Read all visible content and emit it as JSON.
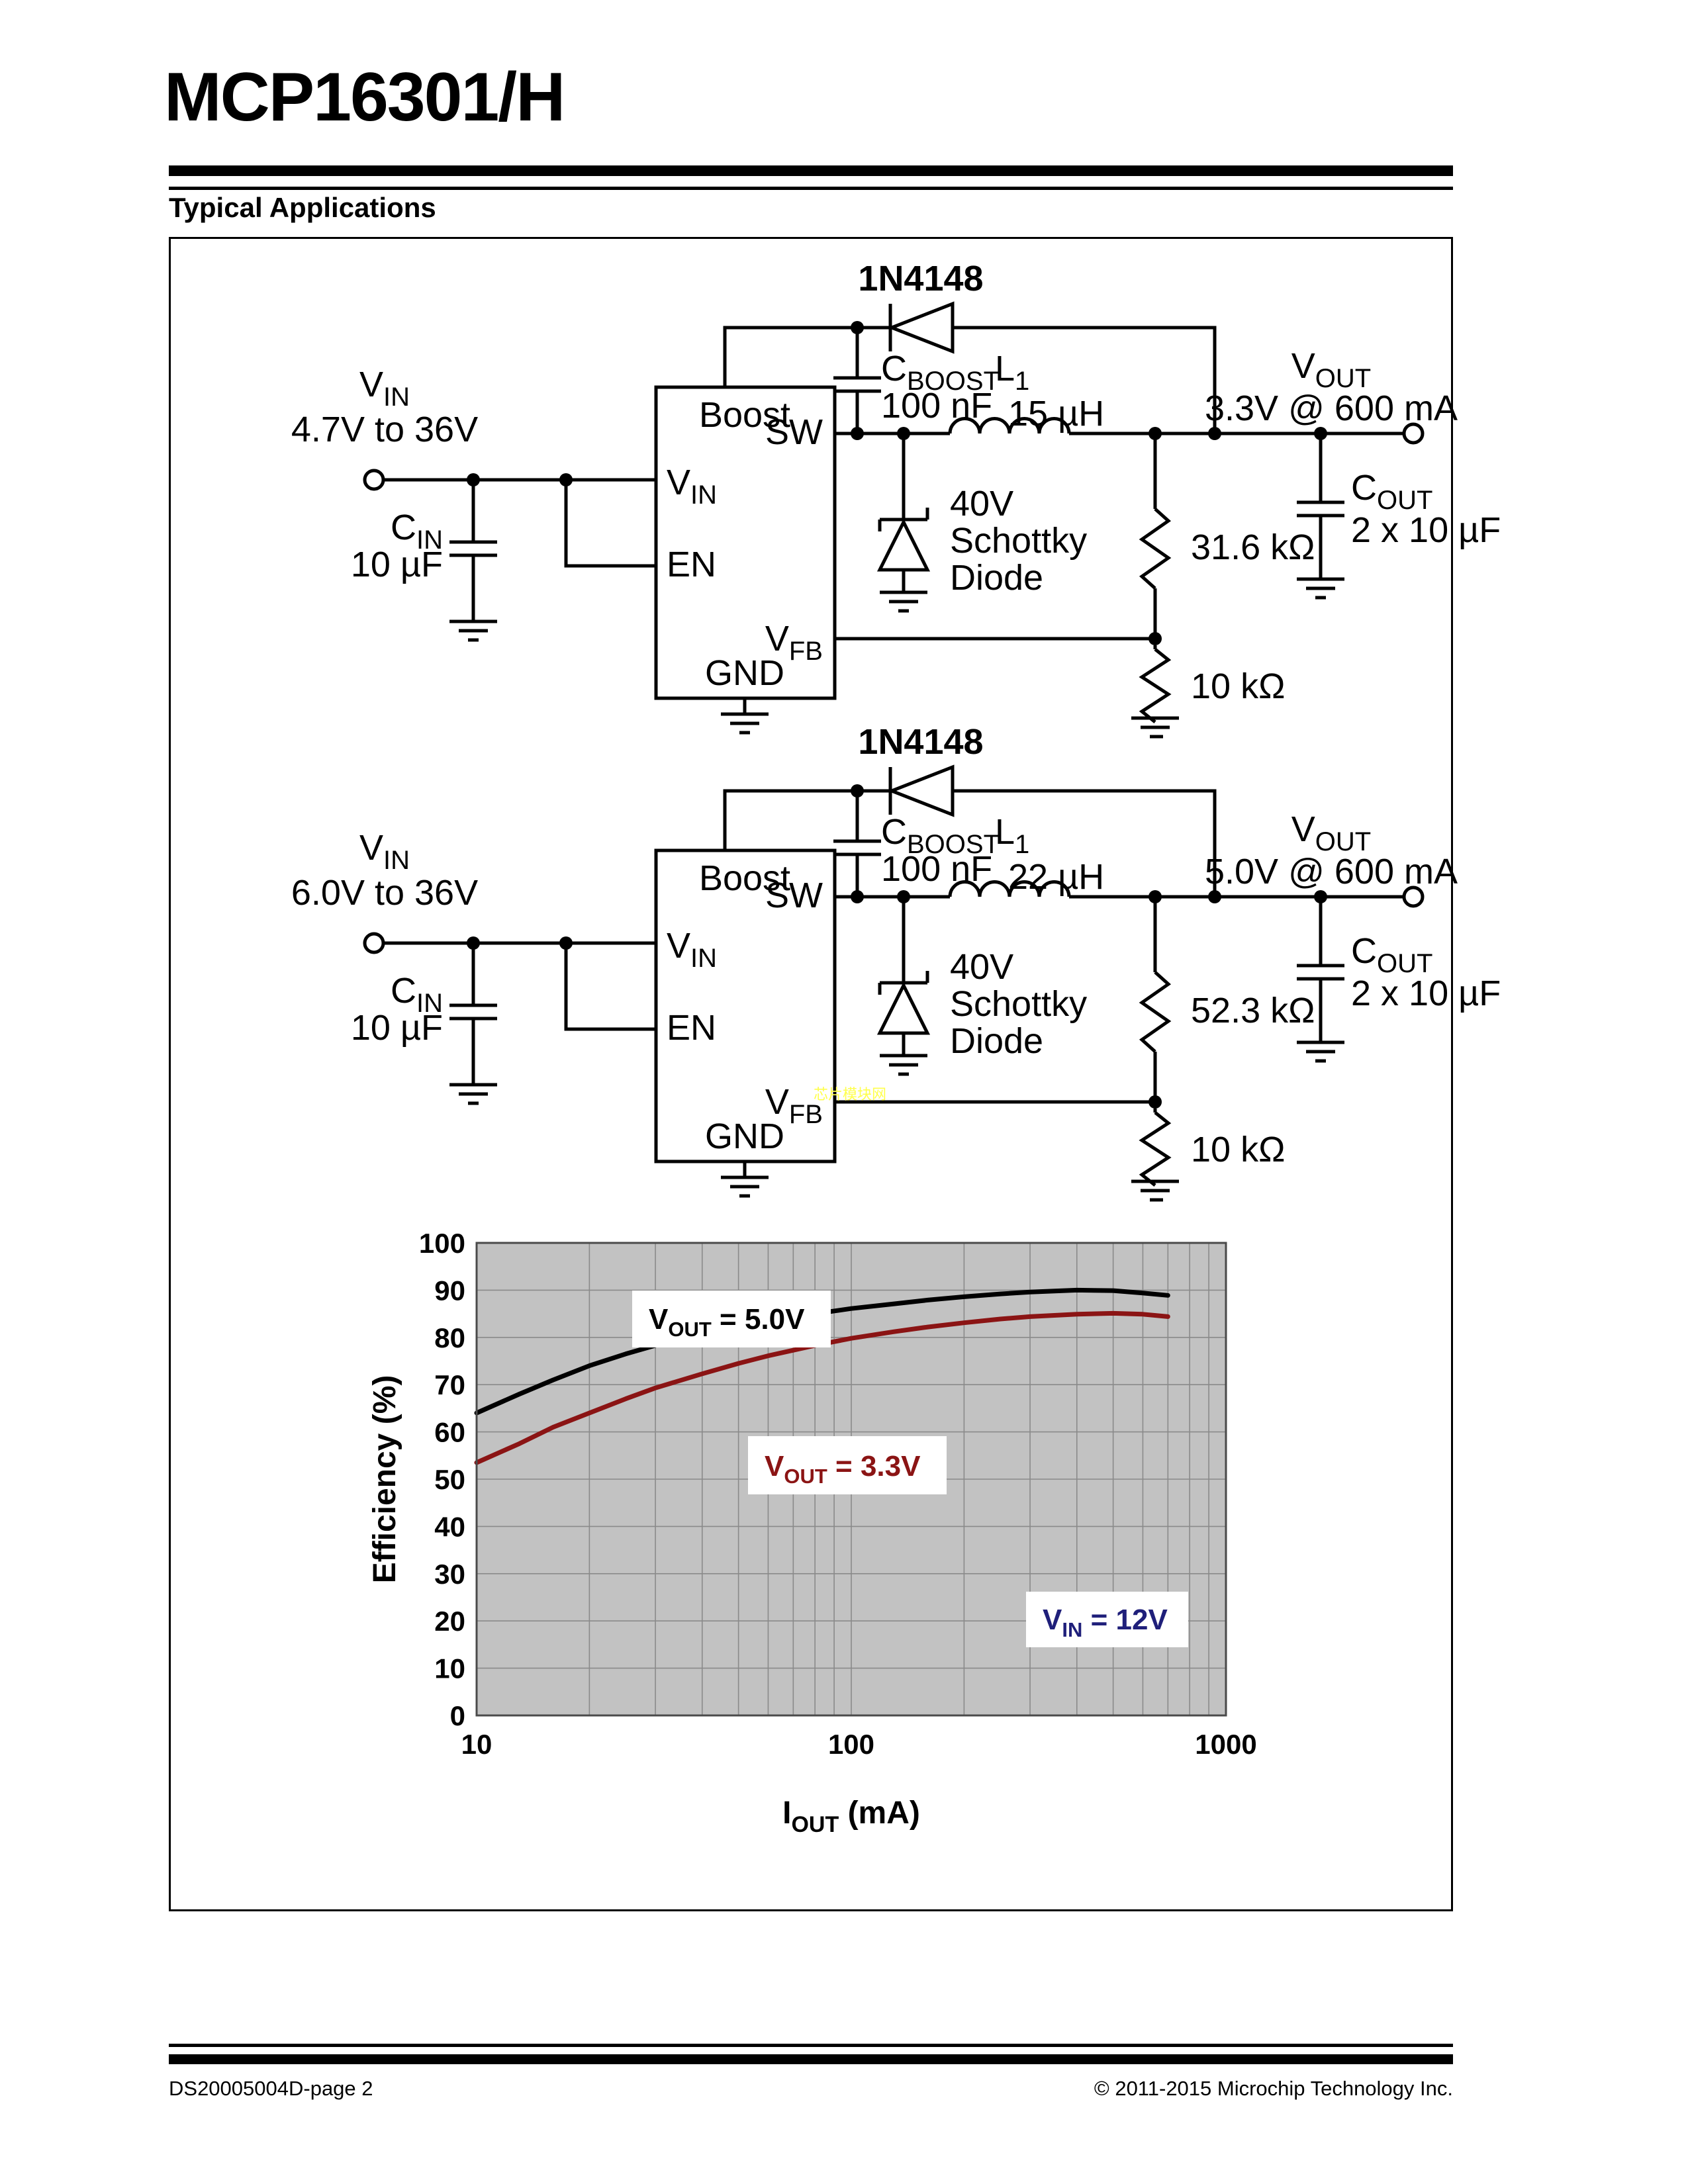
{
  "page": {
    "title": "MCP16301/H",
    "section_heading": "Typical Applications",
    "footer_left": "DS20005004D-page 2",
    "footer_right": "© 2011-2015 Microchip Technology Inc."
  },
  "circuit1": {
    "boost_diode_part": "1N4148",
    "vin_label": {
      "base": "V",
      "sub": "IN"
    },
    "vin_range": "4.7V to 36V",
    "cin_label": {
      "base": "C",
      "sub": "IN"
    },
    "cin_value": "10 µF",
    "ic": {
      "boost": "Boost",
      "sw": "SW",
      "vin": {
        "base": "V",
        "sub": "IN"
      },
      "en": "EN",
      "vfb": {
        "base": "V",
        "sub": "FB"
      },
      "gnd": "GND"
    },
    "cboost_label": {
      "base": "C",
      "sub": "BOOST"
    },
    "cboost_value": "100 nF",
    "inductor_label": {
      "base": "L",
      "sub": "1"
    },
    "inductor_value": "15 µH",
    "vout_label": {
      "base": "V",
      "sub": "OUT"
    },
    "vout_value": "3.3V @ 600 mA",
    "schottky_lines": [
      "40V",
      "Schottky",
      "Diode"
    ],
    "r_top": "31.6 kΩ",
    "r_bottom": "10 kΩ",
    "cout_label": {
      "base": "C",
      "sub": "OUT"
    },
    "cout_value": "2 x 10 µF"
  },
  "circuit2": {
    "boost_diode_part": "1N4148",
    "vin_label": {
      "base": "V",
      "sub": "IN"
    },
    "vin_range": "6.0V to 36V",
    "cin_label": {
      "base": "C",
      "sub": "IN"
    },
    "cin_value": "10 µF",
    "ic": {
      "boost": "Boost",
      "sw": "SW",
      "vin": {
        "base": "V",
        "sub": "IN"
      },
      "en": "EN",
      "vfb": {
        "base": "V",
        "sub": "FB"
      },
      "gnd": "GND"
    },
    "cboost_label": {
      "base": "C",
      "sub": "BOOST"
    },
    "cboost_value": "100 nF",
    "inductor_label": {
      "base": "L",
      "sub": "1"
    },
    "inductor_value": "22 µH",
    "vout_label": {
      "base": "V",
      "sub": "OUT"
    },
    "vout_value": "5.0V @ 600 mA",
    "schottky_lines": [
      "40V",
      "Schottky",
      "Diode"
    ],
    "r_top": "52.3 kΩ",
    "r_bottom": "10 kΩ",
    "cout_label": {
      "base": "C",
      "sub": "OUT"
    },
    "cout_value": "2 x 10 µF",
    "watermark": "芯片模块网"
  },
  "chart_data": {
    "type": "line",
    "xlabel_parts": {
      "pre": "I",
      "sub": "OUT",
      "post": " (mA)"
    },
    "ylabel": "Efficiency (%)",
    "xscale": "log",
    "xlim": [
      10,
      1000
    ],
    "ylim": [
      0,
      100
    ],
    "xticks": [
      10,
      100,
      1000
    ],
    "yticks": [
      0,
      10,
      20,
      30,
      40,
      50,
      60,
      70,
      80,
      90,
      100
    ],
    "grid": true,
    "plot_background": "#c2c2c2",
    "grid_color": "#8a8a8a",
    "border_color": "#4a4a4a",
    "series": [
      {
        "name": "VOUT = 5.0V",
        "color": "#000000",
        "points": [
          [
            10,
            64
          ],
          [
            13,
            68
          ],
          [
            16,
            71
          ],
          [
            20,
            74
          ],
          [
            25,
            76.5
          ],
          [
            30,
            78.3
          ],
          [
            40,
            80.8
          ],
          [
            50,
            82.3
          ],
          [
            60,
            83.4
          ],
          [
            80,
            85.0
          ],
          [
            100,
            86.1
          ],
          [
            130,
            87.1
          ],
          [
            160,
            87.9
          ],
          [
            200,
            88.6
          ],
          [
            250,
            89.2
          ],
          [
            300,
            89.6
          ],
          [
            400,
            90.0
          ],
          [
            500,
            89.9
          ],
          [
            600,
            89.4
          ],
          [
            700,
            88.9
          ]
        ]
      },
      {
        "name": "VOUT = 3.3V",
        "color": "#8b1414",
        "points": [
          [
            10,
            53.5
          ],
          [
            13,
            57.5
          ],
          [
            16,
            61
          ],
          [
            20,
            64
          ],
          [
            25,
            67
          ],
          [
            30,
            69.3
          ],
          [
            40,
            72.3
          ],
          [
            50,
            74.5
          ],
          [
            60,
            76.1
          ],
          [
            80,
            78.3
          ],
          [
            100,
            79.8
          ],
          [
            130,
            81.2
          ],
          [
            160,
            82.2
          ],
          [
            200,
            83.1
          ],
          [
            250,
            83.9
          ],
          [
            300,
            84.4
          ],
          [
            400,
            84.9
          ],
          [
            500,
            85.1
          ],
          [
            600,
            84.9
          ],
          [
            700,
            84.4
          ]
        ]
      }
    ],
    "annotations": [
      {
        "pre": "V",
        "sub": "OUT",
        "post": " = 5.0V",
        "color": "#000000"
      },
      {
        "pre": "V",
        "sub": "OUT",
        "post": " = 3.3V",
        "color": "#8b1414"
      },
      {
        "pre": "V",
        "sub": "IN",
        "post": " = 12V",
        "color": "#1f1f7a"
      }
    ]
  }
}
